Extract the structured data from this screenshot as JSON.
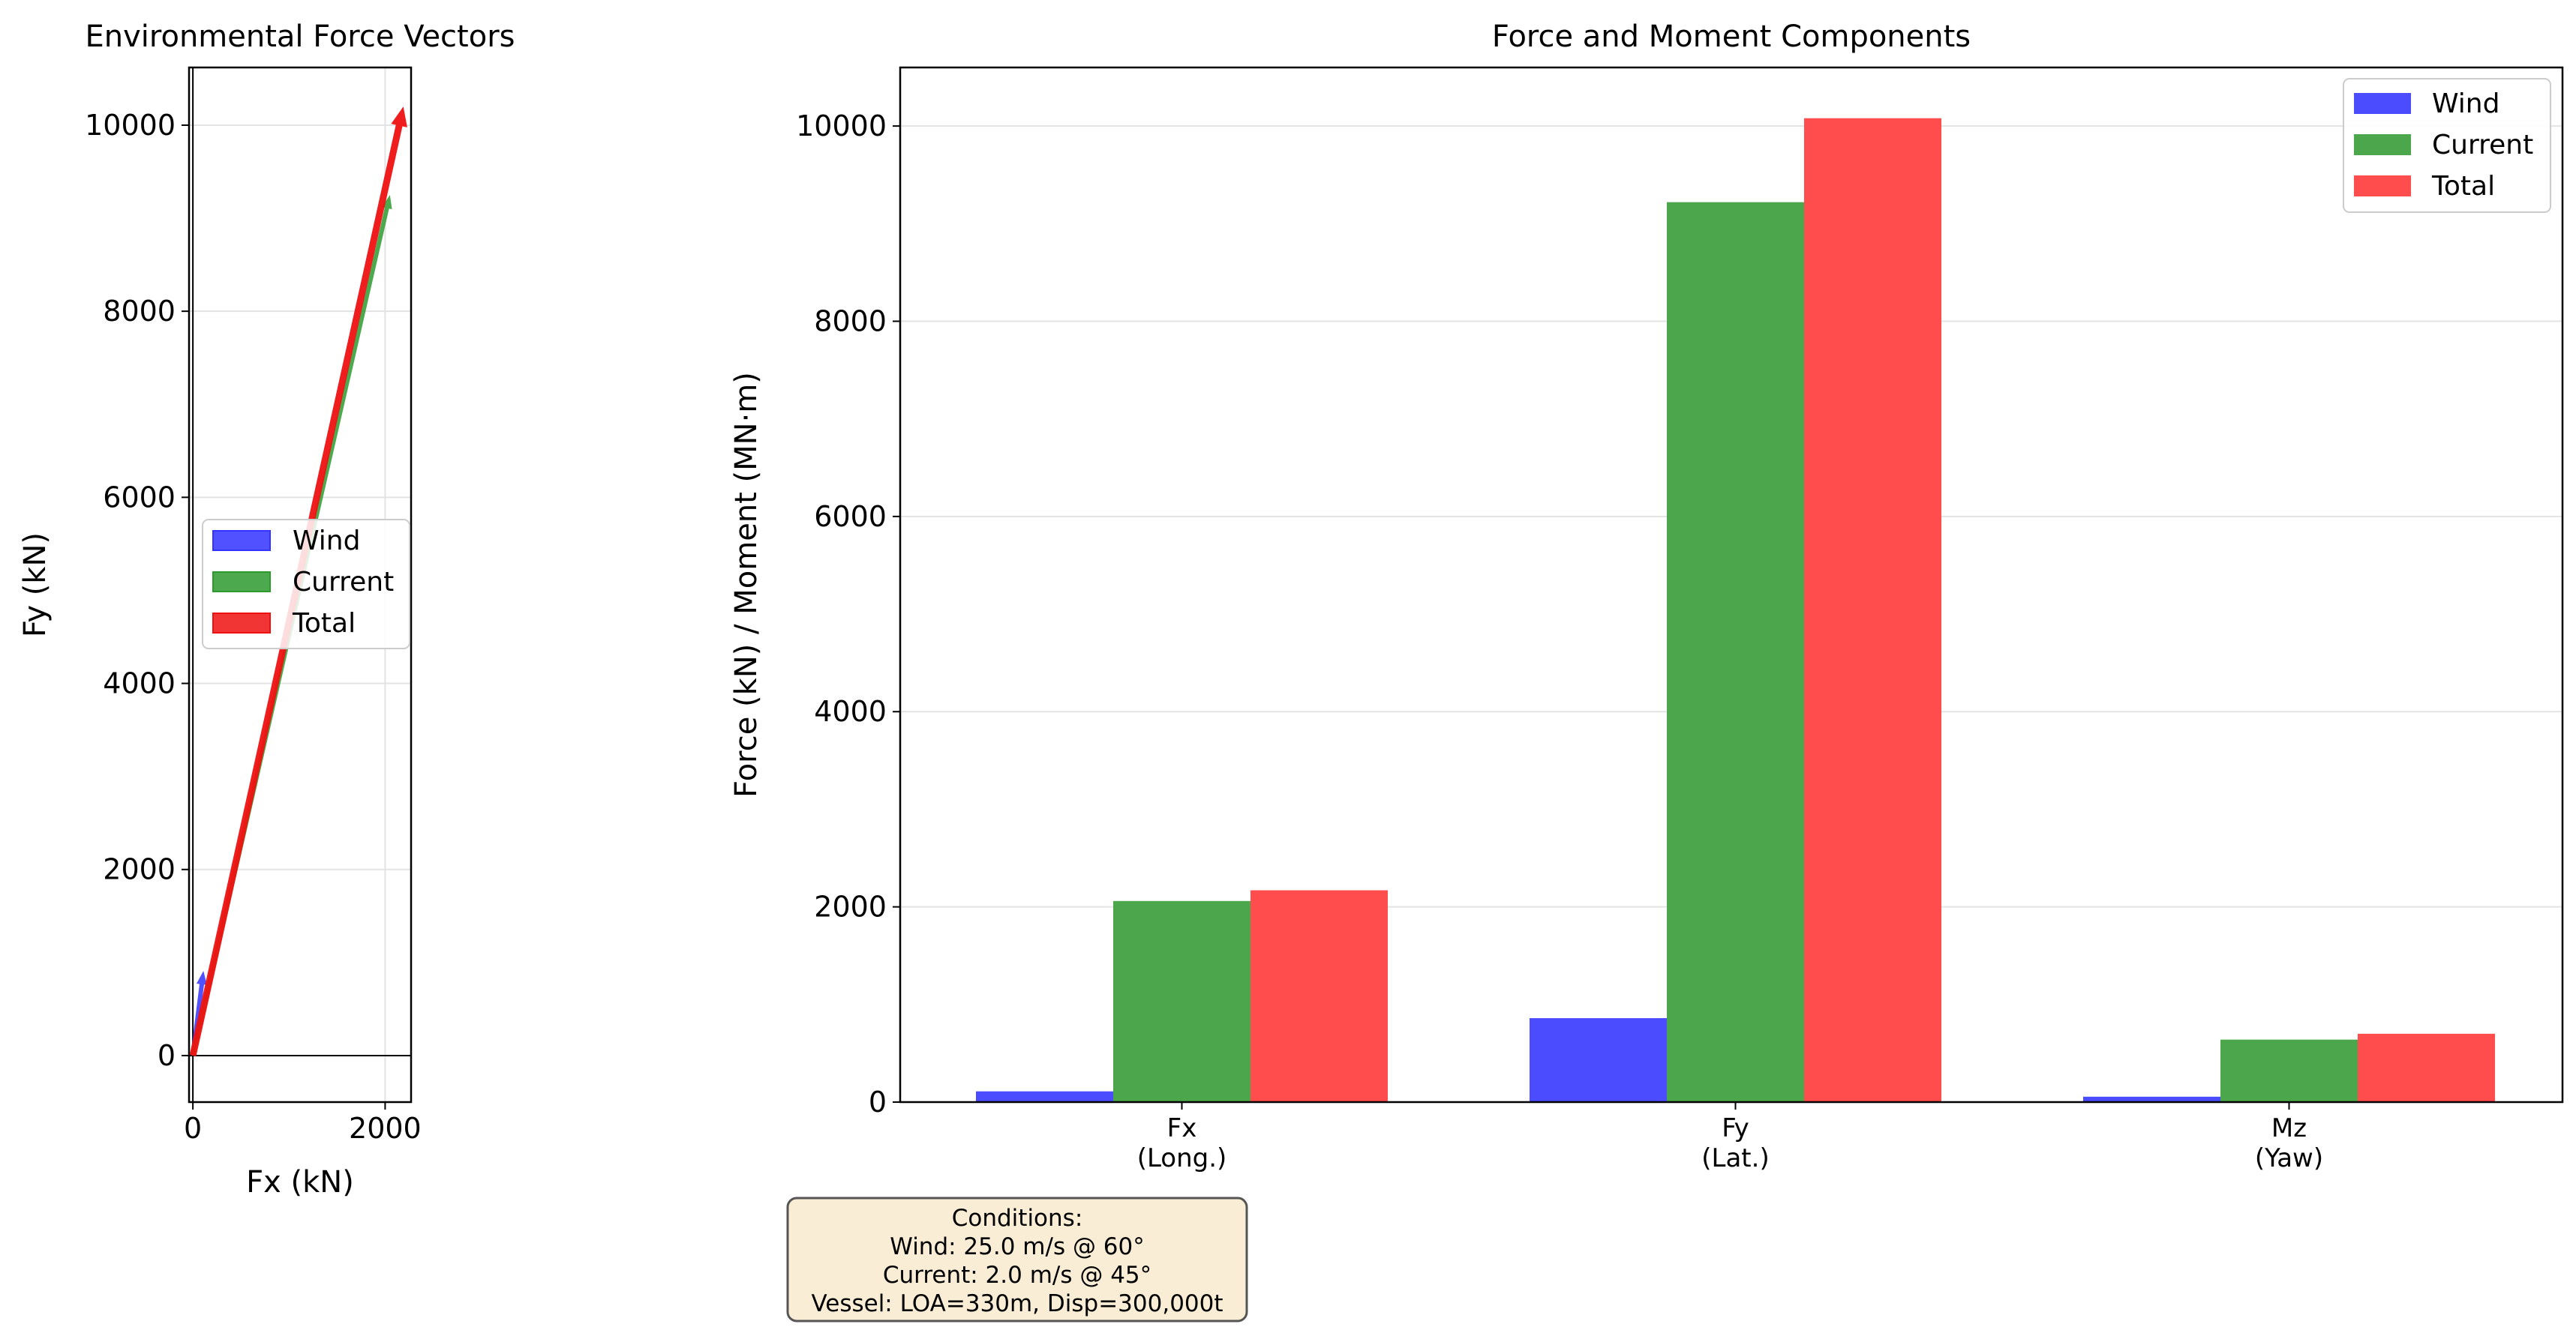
{
  "chart_data": [
    {
      "type": "vector",
      "title": "Environmental Force Vectors",
      "xlabel": "Fx (kN)",
      "ylabel": "Fy (kN)",
      "xlim": [
        -40,
        2270
      ],
      "ylim": [
        -500,
        10620
      ],
      "xticks": [
        0,
        2000
      ],
      "yticks": [
        0,
        2000,
        4000,
        6000,
        8000,
        10000
      ],
      "grid": true,
      "legend_position": "center-right",
      "series": [
        {
          "name": "Wind",
          "color": "#3333ff",
          "x0": 0,
          "y0": 0,
          "x1": 110,
          "y1": 910
        },
        {
          "name": "Current",
          "color": "#2e9a2e",
          "x0": 0,
          "y0": 0,
          "x1": 2050,
          "y1": 9250
        },
        {
          "name": "Total",
          "color": "#ee1111",
          "x0": 0,
          "y0": 0,
          "x1": 2190,
          "y1": 10200
        }
      ]
    },
    {
      "type": "bar",
      "title": "Force and Moment Components",
      "xlabel": "",
      "ylabel": "Force (kN) / Moment (MN·m)",
      "categories": [
        {
          "line1": "Fx",
          "line2": "(Long.)"
        },
        {
          "line1": "Fy",
          "line2": "(Lat.)"
        },
        {
          "line1": "Mz",
          "line2": "(Yaw)"
        }
      ],
      "ylim": [
        0,
        10600
      ],
      "yticks": [
        0,
        2000,
        4000,
        6000,
        8000,
        10000
      ],
      "grid": true,
      "legend_position": "top-right",
      "series": [
        {
          "name": "Wind",
          "color": "#4c4cff",
          "values": [
            110,
            860,
            55
          ]
        },
        {
          "name": "Current",
          "color": "#4ca64c",
          "values": [
            2060,
            9220,
            640
          ]
        },
        {
          "name": "Total",
          "color": "#ff4c4c",
          "values": [
            2170,
            10080,
            700
          ]
        }
      ]
    }
  ],
  "conditions": {
    "lines": [
      "Conditions:",
      "Wind: 25.0 m/s @ 60°",
      "Current: 2.0 m/s @ 45°",
      "Vessel: LOA=330m, Disp=300,000t"
    ],
    "background": "#f5deb3"
  }
}
